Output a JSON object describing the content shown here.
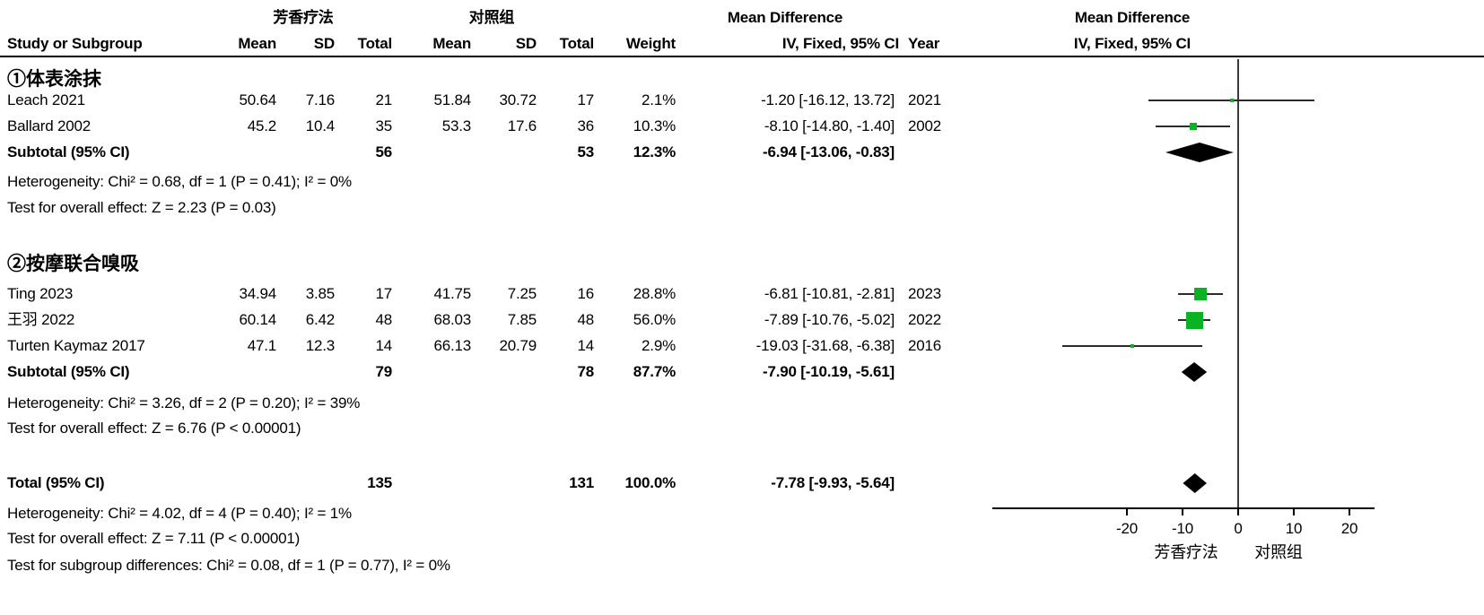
{
  "colors": {
    "marker_green": "#0ab224",
    "diamond_black": "#000000",
    "line_black": "#2b2b2b"
  },
  "chart_data": {
    "type": "forest_plot",
    "effect_measure": "Mean Difference",
    "model": "IV, Fixed, 95% CI",
    "headers": {
      "exp_group": "芳香疗法",
      "ctl_group": "对照组",
      "effect_left": "Mean Difference",
      "effect_right": "Mean Difference",
      "method_left": "IV, Fixed, 95% CI",
      "method_right": "IV, Fixed, 95% CI",
      "study": "Study or Subgroup",
      "mean1": "Mean",
      "sd1": "SD",
      "total1": "Total",
      "mean2": "Mean",
      "sd2": "SD",
      "total2": "Total",
      "weight": "Weight",
      "year": "Year"
    },
    "groups": [
      {
        "title": "①体表涂抹",
        "studies": [
          {
            "study": "Leach 2021",
            "mean1": "50.64",
            "sd1": "7.16",
            "total1": "21",
            "mean2": "51.84",
            "sd2": "30.72",
            "total2": "17",
            "weight": "2.1%",
            "weight_pct": 2.1,
            "ci_text": "-1.20 [-16.12, 13.72]",
            "year": "2021",
            "est": -1.2,
            "lo": -16.12,
            "hi": 13.72
          },
          {
            "study": "Ballard 2002",
            "mean1": "45.2",
            "sd1": "10.4",
            "total1": "35",
            "mean2": "53.3",
            "sd2": "17.6",
            "total2": "36",
            "weight": "10.3%",
            "weight_pct": 10.3,
            "ci_text": "-8.10 [-14.80, -1.40]",
            "year": "2002",
            "est": -8.1,
            "lo": -14.8,
            "hi": -1.4
          }
        ],
        "subtotal": {
          "label": "Subtotal (95% CI)",
          "total1": "56",
          "total2": "53",
          "weight": "12.3%",
          "ci_text": "-6.94 [-13.06, -0.83]",
          "est": -6.94,
          "lo": -13.06,
          "hi": -0.83
        },
        "heterogeneity": "Heterogeneity: Chi² = 0.68, df = 1 (P = 0.41); I² = 0%",
        "overall_effect": "Test for overall effect: Z = 2.23 (P = 0.03)"
      },
      {
        "title": "②按摩联合嗅吸",
        "studies": [
          {
            "study": "Ting 2023",
            "mean1": "34.94",
            "sd1": "3.85",
            "total1": "17",
            "mean2": "41.75",
            "sd2": "7.25",
            "total2": "16",
            "weight": "28.8%",
            "weight_pct": 28.8,
            "ci_text": "-6.81 [-10.81, -2.81]",
            "year": "2023",
            "est": -6.81,
            "lo": -10.81,
            "hi": -2.81
          },
          {
            "study": "王羽 2022",
            "mean1": "60.14",
            "sd1": "6.42",
            "total1": "48",
            "mean2": "68.03",
            "sd2": "7.85",
            "total2": "48",
            "weight": "56.0%",
            "weight_pct": 56.0,
            "ci_text": "-7.89 [-10.76, -5.02]",
            "year": "2022",
            "est": -7.89,
            "lo": -10.76,
            "hi": -5.02
          },
          {
            "study": "Turten Kaymaz 2017",
            "mean1": "47.1",
            "sd1": "12.3",
            "total1": "14",
            "mean2": "66.13",
            "sd2": "20.79",
            "total2": "14",
            "weight": "2.9%",
            "weight_pct": 2.9,
            "ci_text": "-19.03 [-31.68, -6.38]",
            "year": "2016",
            "est": -19.03,
            "lo": -31.68,
            "hi": -6.38
          }
        ],
        "subtotal": {
          "label": "Subtotal (95% CI)",
          "total1": "79",
          "total2": "78",
          "weight": "87.7%",
          "ci_text": "-7.90 [-10.19, -5.61]",
          "est": -7.9,
          "lo": -10.19,
          "hi": -5.61
        },
        "heterogeneity": "Heterogeneity: Chi² = 3.26, df = 2 (P = 0.20); I² = 39%",
        "overall_effect": "Test for overall effect: Z = 6.76 (P < 0.00001)"
      }
    ],
    "total": {
      "label": "Total (95% CI)",
      "total1": "135",
      "total2": "131",
      "weight": "100.0%",
      "ci_text": "-7.78 [-9.93, -5.64]",
      "est": -7.78,
      "lo": -9.93,
      "hi": -5.64
    },
    "footer": [
      "Heterogeneity: Chi² = 4.02, df = 4 (P = 0.40); I² = 1%",
      "Test for overall effect: Z = 7.11 (P < 0.00001)",
      "Test for subgroup differences: Chi² = 0.08, df = 1 (P = 0.77), I² = 0%"
    ],
    "axis": {
      "tick_values": [
        -20,
        -10,
        0,
        10,
        20
      ],
      "tick_labels": [
        "-20",
        "-10",
        "0",
        "10",
        "20"
      ],
      "xlim": [
        -44,
        24.5
      ],
      "favours_left": "芳香疗法",
      "favours_right": "对照组"
    }
  }
}
